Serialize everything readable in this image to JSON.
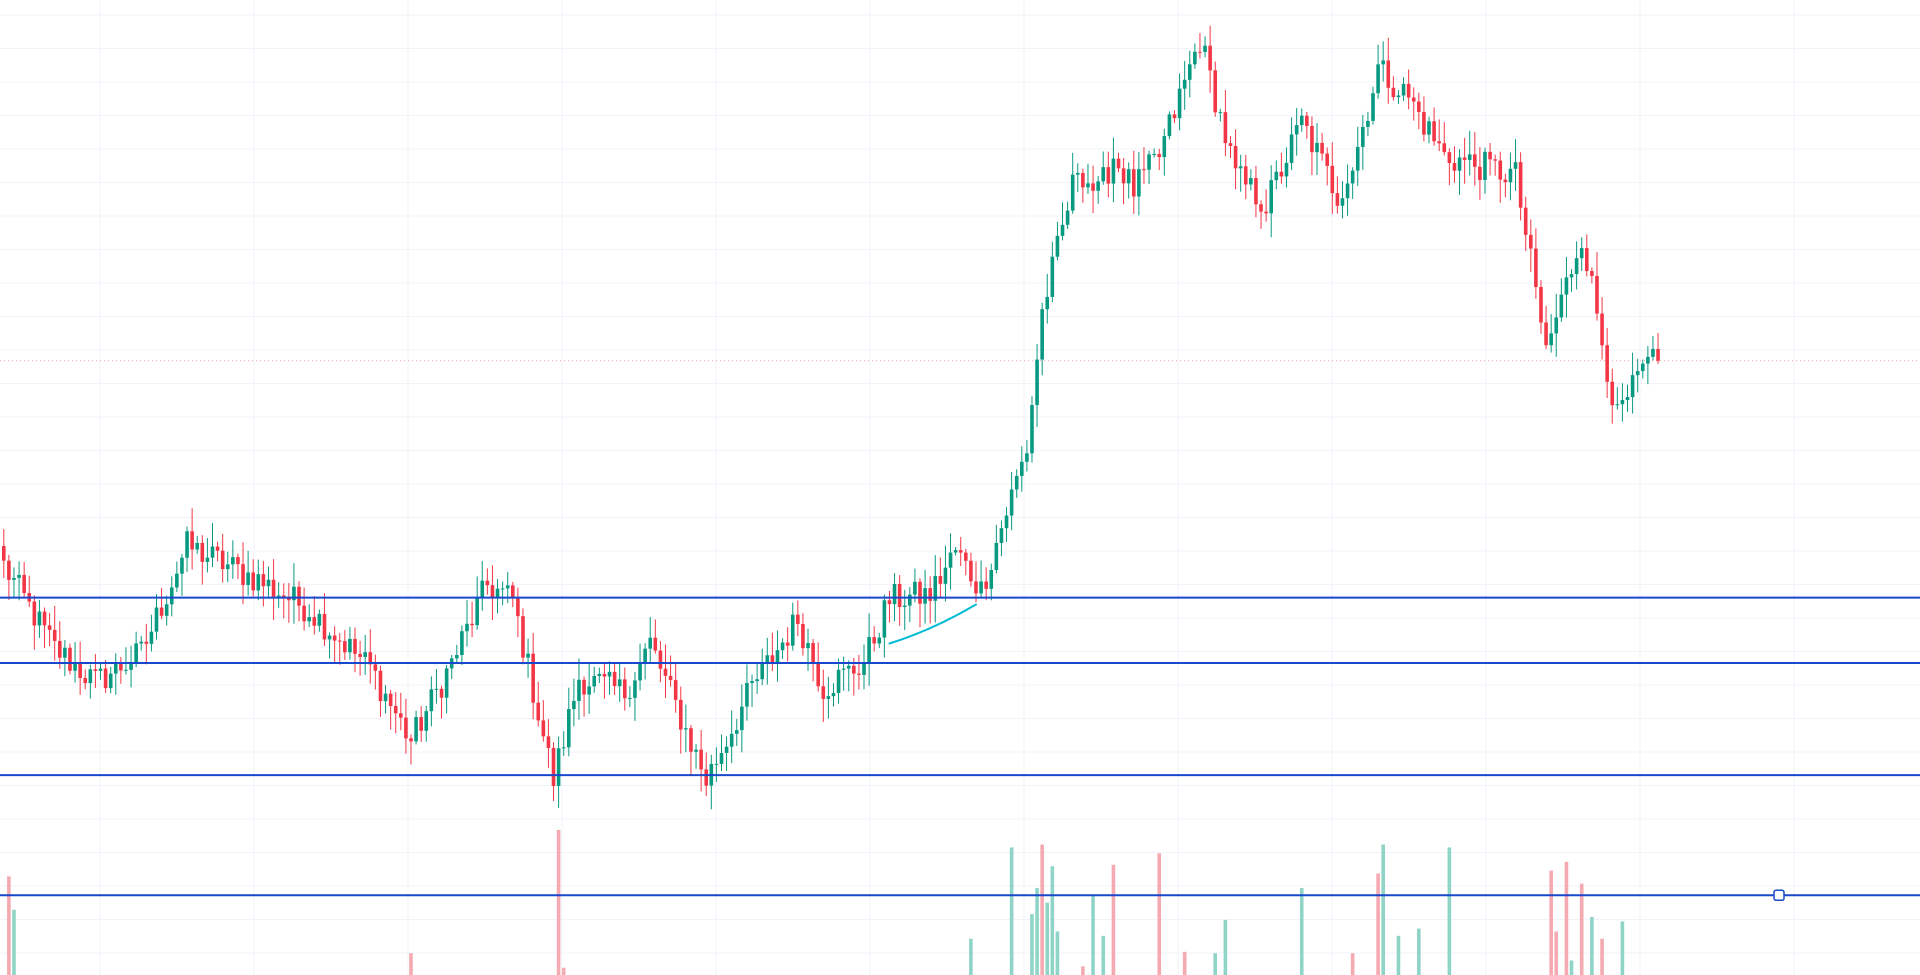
{
  "chart_data": {
    "type": "candlestick",
    "title": "",
    "xlabel": "",
    "ylabel": "",
    "grid": true,
    "legend": "none",
    "colors": {
      "up": "#089981",
      "down": "#f23645",
      "up_volume": "#8fd4c7",
      "down_volume": "#f5a9b0",
      "horizontal_line": "#1848cc",
      "trend_line": "#00bcd4",
      "current_price_line": "#f7525f",
      "grid": "#f0f3fa"
    },
    "ylim": [
      0,
      100
    ],
    "volume_ylim": [
      0,
      100
    ],
    "horizontal_levels": [
      38.7,
      32.0,
      20.5
    ],
    "volume_level": 55,
    "current_price": 63.0,
    "trend_line": {
      "from": {
        "bar": 174,
        "y": 34.0
      },
      "to": {
        "bar": 191,
        "y": 38.0
      }
    },
    "keypoints": [
      [
        0,
        42.0
      ],
      [
        10,
        33.5
      ],
      [
        18,
        30.0
      ],
      [
        27,
        33.0
      ],
      [
        36,
        44.0
      ],
      [
        50,
        40.5
      ],
      [
        60,
        37.5
      ],
      [
        72,
        31.5
      ],
      [
        80,
        24.0
      ],
      [
        88,
        32.0
      ],
      [
        95,
        40.0
      ],
      [
        100,
        38.5
      ],
      [
        108,
        20.0
      ],
      [
        113,
        30.5
      ],
      [
        122,
        29.0
      ],
      [
        127,
        34.0
      ],
      [
        138,
        20.0
      ],
      [
        147,
        29.5
      ],
      [
        156,
        36.5
      ],
      [
        161,
        29.5
      ],
      [
        169,
        32.0
      ],
      [
        174,
        38.5
      ],
      [
        182,
        39.0
      ],
      [
        187,
        43.5
      ],
      [
        192,
        39.5
      ],
      [
        201,
        54.0
      ],
      [
        204,
        68.0
      ],
      [
        211,
        83.0
      ],
      [
        215,
        80.0
      ],
      [
        218,
        84.0
      ],
      [
        222,
        80.5
      ],
      [
        227,
        84.0
      ],
      [
        235,
        96.0
      ],
      [
        242,
        82.0
      ],
      [
        248,
        79.0
      ],
      [
        255,
        87.5
      ],
      [
        262,
        80.0
      ],
      [
        265,
        83.0
      ],
      [
        270,
        93.0
      ],
      [
        276,
        90.0
      ],
      [
        283,
        84.0
      ],
      [
        297,
        82.0
      ],
      [
        303,
        64.0
      ],
      [
        310,
        76.0
      ],
      [
        317,
        57.0
      ],
      [
        322,
        62.0
      ],
      [
        325,
        63.0
      ]
    ],
    "volume_spikes": [
      [
        1,
        68,
        "down"
      ],
      [
        2,
        45,
        "up"
      ],
      [
        80,
        15,
        "down"
      ],
      [
        109,
        100,
        "down"
      ],
      [
        110,
        5,
        "down"
      ],
      [
        190,
        25,
        "up"
      ],
      [
        198,
        88,
        "up"
      ],
      [
        202,
        42,
        "up"
      ],
      [
        203,
        60,
        "up"
      ],
      [
        204,
        90,
        "down"
      ],
      [
        205,
        50,
        "up"
      ],
      [
        206,
        75,
        "up"
      ],
      [
        207,
        30,
        "up"
      ],
      [
        212,
        6,
        "down"
      ],
      [
        214,
        55,
        "up"
      ],
      [
        216,
        27,
        "up"
      ],
      [
        218,
        76,
        "down"
      ],
      [
        227,
        84,
        "down"
      ],
      [
        232,
        16,
        "down"
      ],
      [
        238,
        15,
        "up"
      ],
      [
        240,
        38,
        "up"
      ],
      [
        255,
        60,
        "up"
      ],
      [
        265,
        15,
        "down"
      ],
      [
        270,
        70,
        "down"
      ],
      [
        271,
        90,
        "up"
      ],
      [
        274,
        27,
        "up"
      ],
      [
        278,
        32,
        "up"
      ],
      [
        284,
        88,
        "up"
      ],
      [
        304,
        72,
        "down"
      ],
      [
        305,
        30,
        "down"
      ],
      [
        307,
        78,
        "down"
      ],
      [
        308,
        10,
        "up"
      ],
      [
        310,
        63,
        "down"
      ],
      [
        312,
        40,
        "up"
      ],
      [
        314,
        25,
        "down"
      ],
      [
        318,
        37,
        "up"
      ]
    ]
  }
}
